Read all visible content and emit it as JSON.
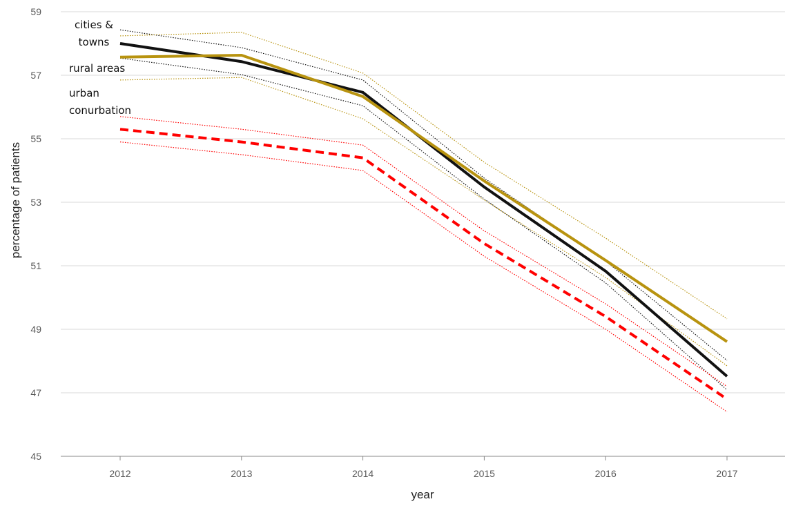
{
  "chart_data": {
    "type": "line",
    "xlabel": "year",
    "ylabel": "percentage of patients",
    "categories": [
      "2012",
      "2013",
      "2014",
      "2015",
      "2016",
      "2017"
    ],
    "ylim": [
      45,
      59
    ],
    "yticks": [
      45,
      47,
      49,
      51,
      53,
      55,
      57,
      59
    ],
    "grid": true,
    "series": [
      {
        "name": "cities & towns",
        "color": "#111111",
        "style": "solid",
        "values": [
          58.0,
          57.43,
          56.46,
          53.48,
          50.83,
          47.52
        ],
        "upper": [
          58.43,
          57.87,
          56.85,
          53.76,
          51.15,
          48.02
        ],
        "lower": [
          57.54,
          57.02,
          56.04,
          53.1,
          50.46,
          47.09
        ]
      },
      {
        "name": "rural areas",
        "color": "#b8930f",
        "style": "solid",
        "values": [
          57.57,
          57.63,
          56.33,
          53.67,
          51.17,
          48.61
        ],
        "upper": [
          58.24,
          58.35,
          57.07,
          54.26,
          51.87,
          49.33
        ],
        "lower": [
          56.85,
          56.93,
          55.63,
          53.07,
          50.63,
          47.85
        ]
      },
      {
        "name": "urban conurbation",
        "color": "#ff0000",
        "style": "dashed",
        "values": [
          55.3,
          54.9,
          54.4,
          51.7,
          49.4,
          46.8
        ],
        "upper": [
          55.7,
          55.3,
          54.8,
          52.1,
          49.8,
          47.2
        ],
        "lower": [
          54.9,
          54.5,
          54.0,
          51.3,
          49.0,
          46.4
        ]
      }
    ]
  }
}
